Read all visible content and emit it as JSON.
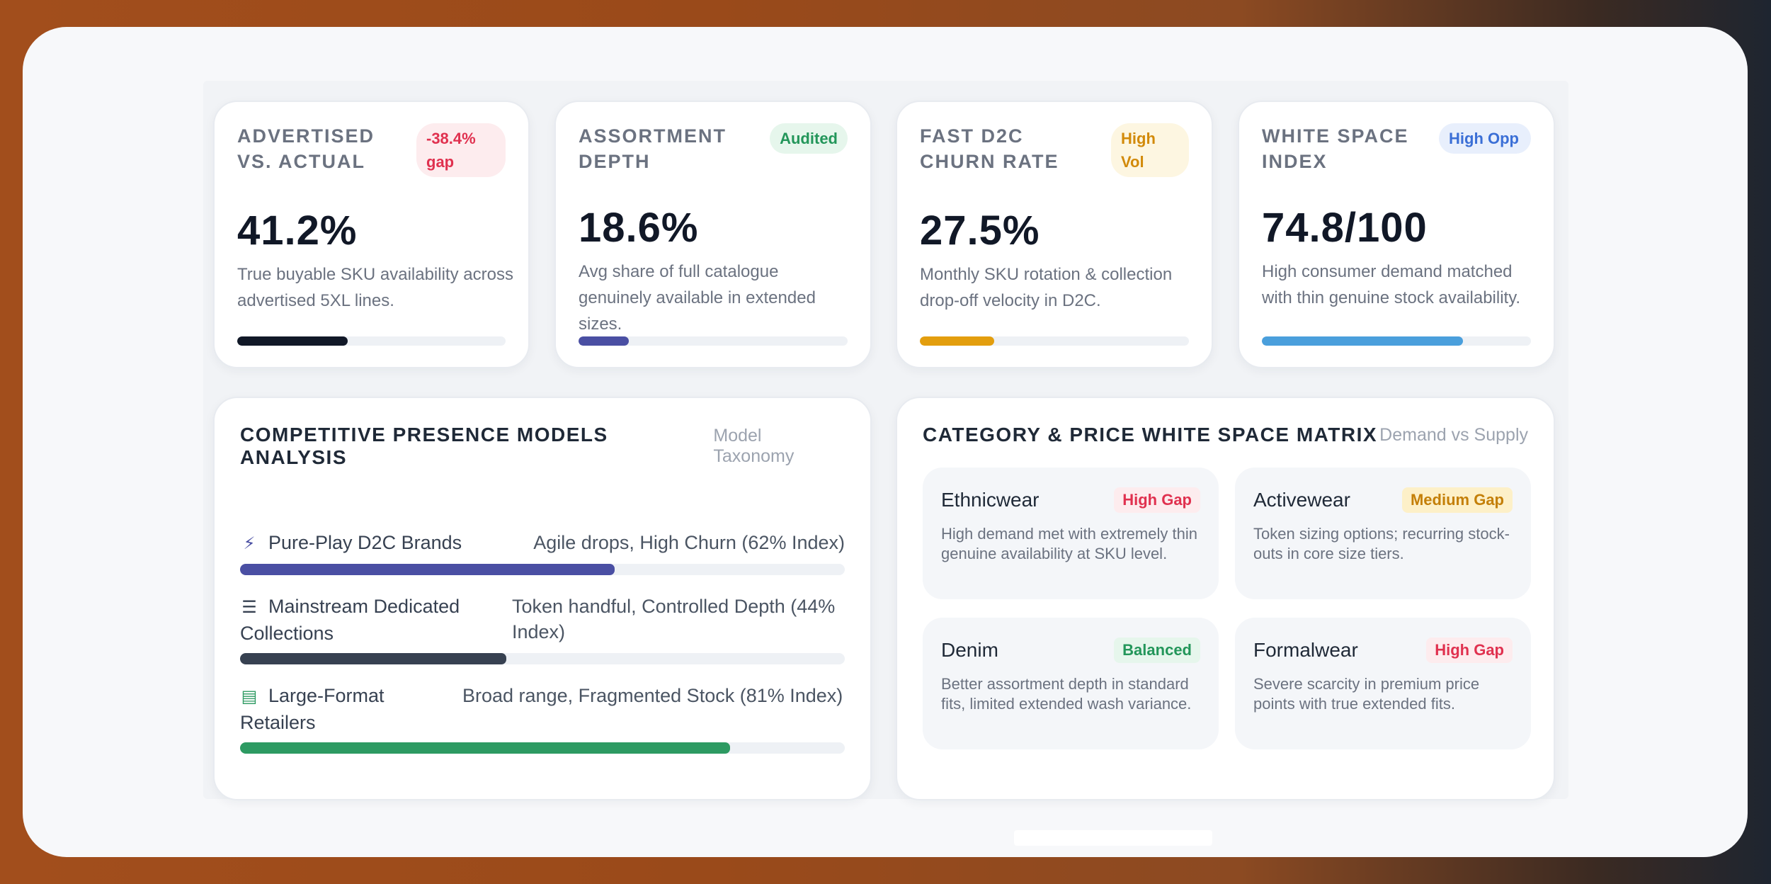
{
  "kpis": [
    {
      "title": "ADVERTISED VS. ACTUAL",
      "badge": "-38.4% gap",
      "value": "41.2%",
      "desc": "True buyable SKU availability across advertised 5XL lines.",
      "progress": 0.412,
      "color": "#111827"
    },
    {
      "title": "ASSORTMENT DEPTH",
      "badge": "Audited",
      "value": "18.6%",
      "desc": "Avg share of full catalogue genuinely available in extended sizes.",
      "progress": 0.186,
      "color": "#4a4fa3"
    },
    {
      "title": "FAST D2C CHURN RATE",
      "badge": "High Vol",
      "value": "27.5%",
      "desc": "Monthly SKU rotation & collection drop-off velocity in D2C.",
      "progress": 0.275,
      "color": "#e39e0e"
    },
    {
      "title": "WHITE SPACE INDEX",
      "badge": "High Opp",
      "value": "74.8/100",
      "desc": "High consumer demand matched with thin genuine stock availability.",
      "progress": 0.748,
      "color": "#4a9fdc"
    }
  ],
  "competitive": {
    "title": "COMPETITIVE PRESENCE MODELS ANALYSIS",
    "subtitle": "Model Taxonomy",
    "models": [
      {
        "name": "Pure-Play D2C Brands",
        "desc": "Agile drops, High Churn (62% Index)",
        "progress": 0.62,
        "icon": "lightning-icon",
        "color": "#4a4fa3"
      },
      {
        "name": "Mainstream Dedicated Collections",
        "desc": "Token handful, Controlled Depth (44% Index)",
        "progress": 0.44,
        "icon": "layers-icon",
        "color": "#374151"
      },
      {
        "name": "Large-Format Retailers",
        "desc": "Broad range, Fragmented Stock (81% Index)",
        "progress": 0.81,
        "icon": "store-icon",
        "color": "#2d9a62"
      }
    ]
  },
  "matrix": {
    "title": "CATEGORY & PRICE WHITE SPACE MATRIX",
    "subtitle": "Demand vs Supply",
    "tiles": [
      {
        "name": "Ethnicwear",
        "badge": "High Gap",
        "desc": "High demand met with extremely thin genuine availability at SKU level."
      },
      {
        "name": "Activewear",
        "badge": "Medium Gap",
        "desc": "Token sizing options; recurring stock-outs in core size tiers."
      },
      {
        "name": "Denim",
        "badge": "Balanced",
        "desc": "Better assortment depth in standard fits, limited extended wash variance."
      },
      {
        "name": "Formalwear",
        "badge": "High Gap",
        "desc": "Severe scarcity in premium price points with true extended fits."
      }
    ]
  }
}
